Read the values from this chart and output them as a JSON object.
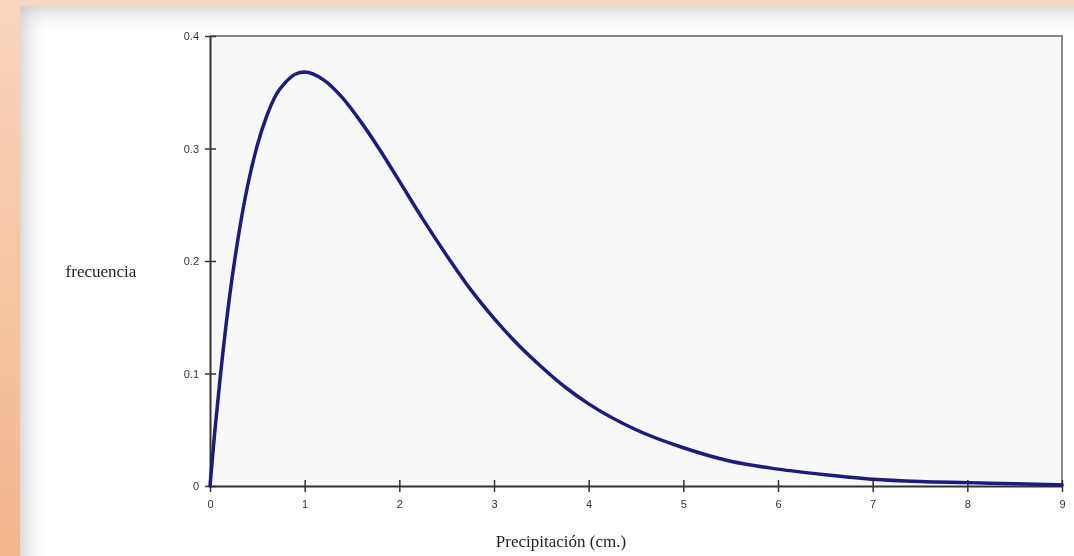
{
  "chart_data": {
    "type": "line",
    "xlabel": "Precipitación (cm.)",
    "ylabel": "frecuencia",
    "x": [
      0,
      0.05,
      0.1,
      0.2,
      0.3,
      0.4,
      0.5,
      0.6,
      0.7,
      0.8,
      0.9,
      1,
      1.2,
      1.4,
      1.6,
      1.8,
      2,
      2.25,
      2.5,
      2.75,
      3,
      3.25,
      3.5,
      3.75,
      4,
      4.5,
      5,
      5.5,
      6,
      6.5,
      7,
      7.5,
      8,
      8.5,
      9
    ],
    "series": [
      {
        "color": "#1c1c7c",
        "values": [
          0,
          0.048,
          0.09,
          0.164,
          0.222,
          0.268,
          0.303,
          0.329,
          0.348,
          0.359,
          0.366,
          0.368,
          0.361,
          0.345,
          0.323,
          0.298,
          0.271,
          0.237,
          0.205,
          0.175,
          0.149,
          0.126,
          0.106,
          0.088,
          0.073,
          0.05,
          0.034,
          0.022,
          0.015,
          0.01,
          0.006,
          0.004,
          0.003,
          0.002,
          0.001
        ]
      }
    ],
    "xlim": [
      0,
      9
    ],
    "ylim": [
      0,
      0.4
    ],
    "xticks": [
      0,
      1,
      2,
      3,
      4,
      5,
      6,
      7,
      8,
      9
    ],
    "yticks": [
      0,
      0.1,
      0.2,
      0.3,
      0.4
    ],
    "line_style": "solid"
  }
}
